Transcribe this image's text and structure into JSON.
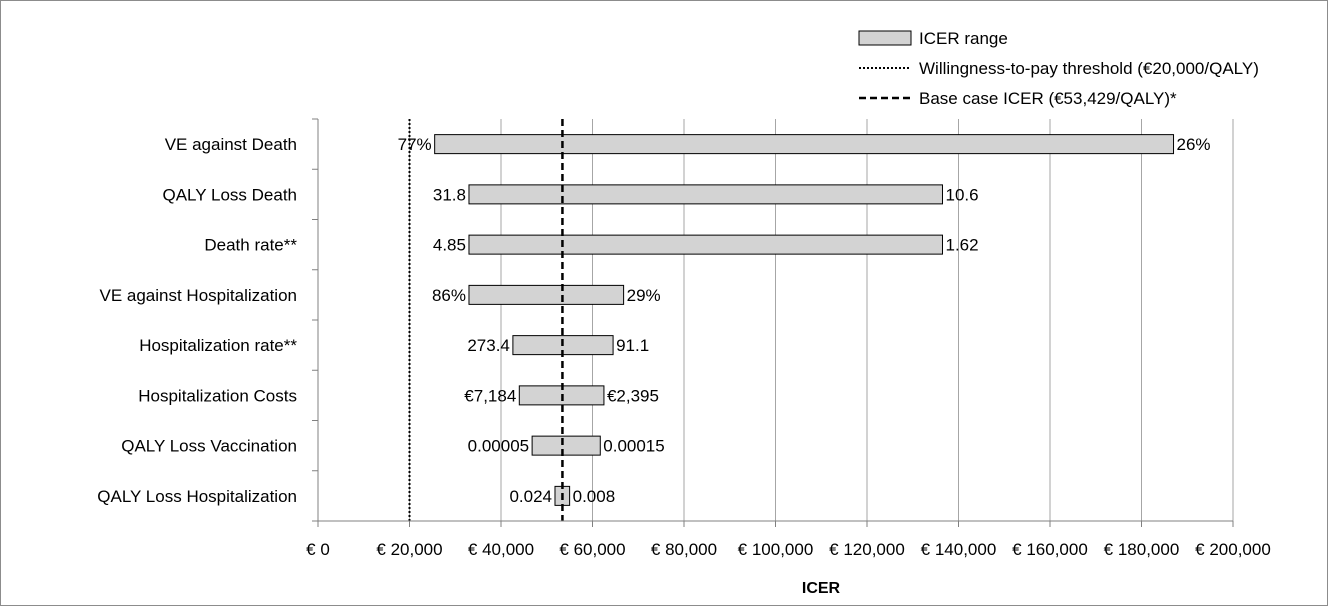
{
  "chart_data": {
    "type": "bar",
    "subtype": "tornado",
    "title": "",
    "xlabel": "ICER",
    "ylabel": "",
    "xlim": [
      0,
      200000
    ],
    "x_ticks": [
      0,
      20000,
      40000,
      60000,
      80000,
      100000,
      120000,
      140000,
      160000,
      180000,
      200000
    ],
    "x_tick_labels": [
      "€ 0",
      "€ 20,000",
      "€ 40,000",
      "€ 60,000",
      "€ 80,000",
      "€ 100,000",
      "€ 120,000",
      "€ 140,000",
      "€ 160,000",
      "€ 180,000",
      "€ 200,000"
    ],
    "grid": "vertical",
    "legend": {
      "position": "top-right",
      "entries": [
        "ICER range",
        "Willingness-to-pay threshold (€20,000/QALY)",
        "Base case ICER (€53,429/QALY)*"
      ]
    },
    "reference_lines": [
      {
        "name": "Willingness-to-pay threshold",
        "x": 20000,
        "style": "dotted"
      },
      {
        "name": "Base case ICER",
        "x": 53429,
        "style": "dashed"
      }
    ],
    "bars": [
      {
        "category": "VE against Death",
        "low": 25500,
        "high": 187000,
        "low_label": "77%",
        "high_label": "26%"
      },
      {
        "category": "QALY Loss Death",
        "low": 33000,
        "high": 136500,
        "low_label": "31.8",
        "high_label": "10.6"
      },
      {
        "category": "Death rate**",
        "low": 33000,
        "high": 136500,
        "low_label": "4.85",
        "high_label": "1.62"
      },
      {
        "category": "VE against Hospitalization",
        "low": 33000,
        "high": 66800,
        "low_label": "86%",
        "high_label": "29%"
      },
      {
        "category": "Hospitalization rate**",
        "low": 42600,
        "high": 64500,
        "low_label": "273.4",
        "high_label": "91.1"
      },
      {
        "category": "Hospitalization Costs",
        "low": 44000,
        "high": 62500,
        "low_label": "€7,184",
        "high_label": "€2,395"
      },
      {
        "category": "QALY Loss Vaccination",
        "low": 46800,
        "high": 61700,
        "low_label": "0.00005",
        "high_label": "0.00015"
      },
      {
        "category": "QALY Loss Hospitalization",
        "low": 51800,
        "high": 55000,
        "low_label": "0.024",
        "high_label": "0.008"
      }
    ],
    "colors": {
      "bar_fill": "#d3d3d3",
      "bar_stroke": "#000000",
      "grid": "#a6a6a6",
      "axis": "#808080"
    }
  }
}
